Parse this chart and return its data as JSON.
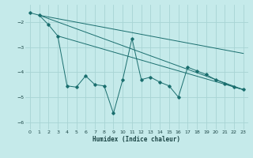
{
  "xlabel": "Humidex (Indice chaleur)",
  "bg_color": "#c5eaea",
  "grid_color": "#a8d4d4",
  "line_color": "#1a6e6e",
  "xlim": [
    -0.5,
    23.5
  ],
  "ylim": [
    -6.3,
    -1.3
  ],
  "yticks": [
    -6,
    -5,
    -4,
    -3,
    -2
  ],
  "xticks": [
    0,
    1,
    2,
    3,
    4,
    5,
    6,
    7,
    8,
    9,
    10,
    11,
    12,
    13,
    14,
    15,
    16,
    17,
    18,
    19,
    20,
    21,
    22,
    23
  ],
  "main_x": [
    0,
    1,
    2,
    3,
    4,
    5,
    6,
    7,
    8,
    9,
    10,
    11,
    12,
    13,
    14,
    15,
    16,
    17,
    18,
    19,
    20,
    21,
    22,
    23
  ],
  "main_y": [
    -1.62,
    -1.72,
    -2.1,
    -2.55,
    -4.55,
    -4.6,
    -4.15,
    -4.5,
    -4.55,
    -5.65,
    -4.3,
    -2.65,
    -4.3,
    -4.2,
    -4.4,
    -4.55,
    -5.0,
    -3.8,
    -3.95,
    -4.1,
    -4.3,
    -4.45,
    -4.6,
    -4.7
  ],
  "trend_lines": [
    {
      "x": [
        1,
        23
      ],
      "y": [
        -1.72,
        -3.25
      ]
    },
    {
      "x": [
        1,
        23
      ],
      "y": [
        -1.72,
        -4.7
      ]
    },
    {
      "x": [
        3,
        23
      ],
      "y": [
        -2.55,
        -4.7
      ]
    }
  ]
}
